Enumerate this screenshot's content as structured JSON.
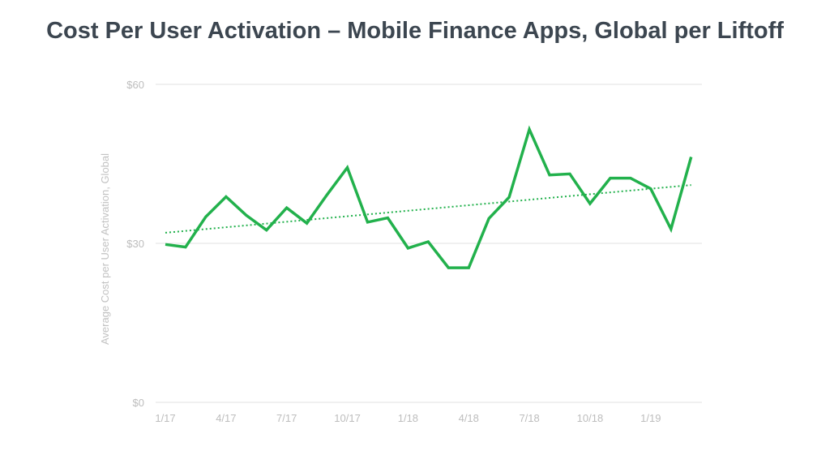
{
  "chart_data": {
    "type": "line",
    "title": "Cost Per User Activation – Mobile Finance Apps, Global per Liftoff",
    "xlabel": "",
    "ylabel": "Average Cost per User Activation, Global",
    "ylim": [
      0,
      60
    ],
    "yticks": [
      {
        "value": 0,
        "label": "$0"
      },
      {
        "value": 30,
        "label": "$30"
      },
      {
        "value": 60,
        "label": "$60"
      }
    ],
    "x": [
      "1/17",
      "2/17",
      "3/17",
      "4/17",
      "5/17",
      "6/17",
      "7/17",
      "8/17",
      "9/17",
      "10/17",
      "11/17",
      "12/17",
      "1/18",
      "2/18",
      "3/18",
      "4/18",
      "5/18",
      "6/18",
      "7/18",
      "8/18",
      "9/18",
      "10/18",
      "11/18",
      "12/18",
      "1/19",
      "2/19",
      "3/19"
    ],
    "xticks": [
      "1/17",
      "4/17",
      "7/17",
      "10/17",
      "1/18",
      "4/18",
      "7/18",
      "10/18",
      "1/19"
    ],
    "series": [
      {
        "values": [
          29.8,
          29.3,
          35.0,
          38.8,
          35.3,
          32.5,
          36.7,
          33.8,
          39.2,
          44.3,
          34.0,
          34.8,
          29.1,
          30.3,
          25.4,
          25.4,
          34.7,
          38.7,
          51.5,
          42.9,
          43.1,
          37.5,
          42.3,
          42.3,
          40.3,
          32.7,
          46.3
        ],
        "color": "#22b14c"
      }
    ],
    "trendline": {
      "start": 32.0,
      "end": 41.0,
      "color": "#22b14c",
      "style": "dotted"
    },
    "grid": true,
    "grid_color": "#e2e2e2"
  }
}
